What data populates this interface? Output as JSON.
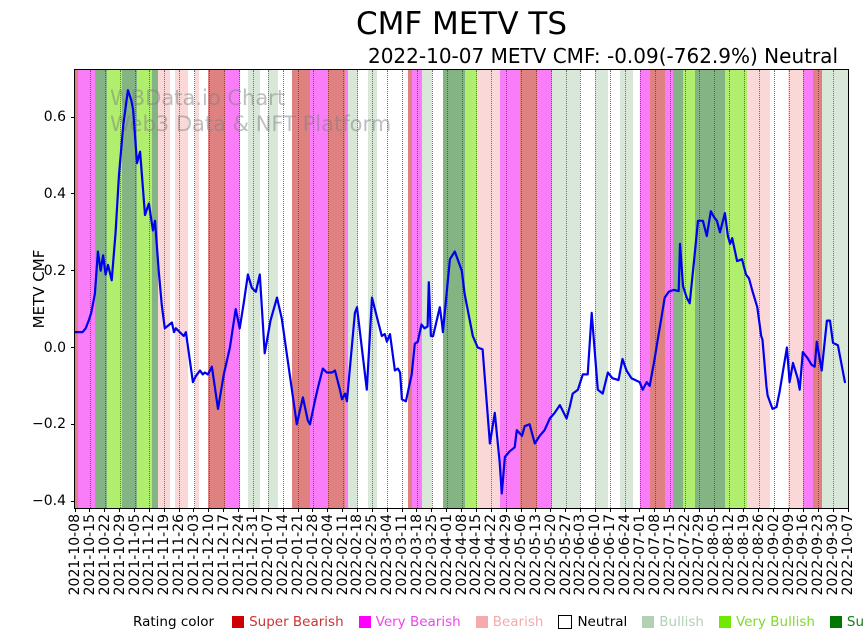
{
  "title": "CMF METV TS",
  "subtitle": "2022-10-07 METV CMF: -0.09(-762.9%) Neutral",
  "watermark": {
    "line1": "WBData.io Chart",
    "line2": "Web3 Data & NFT Platform"
  },
  "legend": {
    "title": "Rating color",
    "items": [
      {
        "label": "Super Bearish",
        "swatch": "#cc0000",
        "text_color": "#cc3333",
        "border": false
      },
      {
        "label": "Very Bearish",
        "swatch": "#ff00ff",
        "text_color": "#ee44ee",
        "border": false
      },
      {
        "label": "Bearish",
        "swatch": "#f5abab",
        "text_color": "#f5abab",
        "border": false
      },
      {
        "label": "Neutral",
        "swatch": "#ffffff",
        "text_color": "#000000",
        "border": true
      },
      {
        "label": "Bullish",
        "swatch": "#b2d1b2",
        "text_color": "#b2d1b2",
        "border": false
      },
      {
        "label": "Very Bullish",
        "swatch": "#70e800",
        "text_color": "#7fd92e",
        "border": false
      },
      {
        "label": "Super Bullish",
        "swatch": "#007700",
        "text_color": "#1a7d1a",
        "border": false
      }
    ]
  },
  "chart_data": {
    "type": "line",
    "title": "CMF METV TS",
    "xlabel": "",
    "ylabel": "METV CMF",
    "ylim": [
      -0.418,
      0.722
    ],
    "grid": "vertical-dotted-weekly",
    "legend_position": "bottom",
    "line_color": "#0000ee",
    "x_days_total": 253,
    "yticks": [
      {
        "value": 0.6,
        "label": "0.6"
      },
      {
        "value": 0.4,
        "label": "0.4"
      },
      {
        "value": 0.2,
        "label": "0.2"
      },
      {
        "value": 0.0,
        "label": "0.0"
      },
      {
        "value": -0.2,
        "label": "−0.2"
      },
      {
        "value": -0.4,
        "label": "−0.4"
      }
    ],
    "xticks": [
      "2021-10-08",
      "2021-10-15",
      "2021-10-22",
      "2021-10-29",
      "2021-11-05",
      "2021-11-12",
      "2021-11-19",
      "2021-11-26",
      "2021-12-03",
      "2021-12-10",
      "2021-12-17",
      "2021-12-24",
      "2021-12-31",
      "2022-01-07",
      "2022-01-14",
      "2022-01-21",
      "2022-01-28",
      "2022-02-04",
      "2022-02-11",
      "2022-02-18",
      "2022-02-25",
      "2022-03-04",
      "2022-03-11",
      "2022-03-18",
      "2022-03-25",
      "2022-04-01",
      "2022-04-08",
      "2022-04-15",
      "2022-04-22",
      "2022-04-29",
      "2022-05-06",
      "2022-05-13",
      "2022-05-20",
      "2022-05-27",
      "2022-06-03",
      "2022-06-10",
      "2022-06-17",
      "2022-06-24",
      "2022-07-01",
      "2022-07-08",
      "2022-07-15",
      "2022-07-22",
      "2022-07-29",
      "2022-08-05",
      "2022-08-12",
      "2022-08-19",
      "2022-08-26",
      "2022-09-02",
      "2022-09-09",
      "2022-09-16",
      "2022-09-23",
      "2022-09-30",
      "2022-10-07"
    ],
    "band_colors": {
      "super_bearish": "#e08181",
      "very_bearish": "#f97df9",
      "bearish": "#fbd8d8",
      "neutral": "#ffffff",
      "bullish": "#d9e7d9",
      "very_bullish": "#b0ee6e",
      "super_bullish": "#84b384"
    },
    "bands": [
      [
        0,
        1,
        "super_bearish"
      ],
      [
        1,
        6.5,
        "very_bearish"
      ],
      [
        6.5,
        10.5,
        "super_bullish"
      ],
      [
        10.5,
        15.4,
        "very_bullish"
      ],
      [
        15.4,
        20.3,
        "super_bullish"
      ],
      [
        20.3,
        25.2,
        "very_bullish"
      ],
      [
        25.2,
        27.2,
        "super_bullish"
      ],
      [
        27.2,
        31.1,
        "bearish"
      ],
      [
        31.1,
        32.7,
        "neutral"
      ],
      [
        32.7,
        37,
        "bearish"
      ],
      [
        37,
        39.3,
        "neutral"
      ],
      [
        39.3,
        40.6,
        "bearish"
      ],
      [
        40.6,
        43.5,
        "neutral"
      ],
      [
        43.5,
        49.1,
        "super_bearish"
      ],
      [
        49.1,
        54,
        "very_bearish"
      ],
      [
        54,
        56.6,
        "neutral"
      ],
      [
        56.6,
        60.5,
        "bullish"
      ],
      [
        60.5,
        63.2,
        "neutral"
      ],
      [
        63.2,
        66.4,
        "bullish"
      ],
      [
        66.4,
        71,
        "neutral"
      ],
      [
        71,
        76.9,
        "super_bearish"
      ],
      [
        76.9,
        82.8,
        "very_bearish"
      ],
      [
        82.8,
        88.4,
        "super_bearish"
      ],
      [
        88.4,
        89.3,
        "very_bearish"
      ],
      [
        89.3,
        92.6,
        "bullish"
      ],
      [
        92.6,
        95.9,
        "neutral"
      ],
      [
        95.9,
        98.8,
        "bullish"
      ],
      [
        98.8,
        109,
        "neutral"
      ],
      [
        109,
        110.3,
        "super_bearish"
      ],
      [
        110.3,
        113.6,
        "very_bearish"
      ],
      [
        113.6,
        116.8,
        "bullish"
      ],
      [
        116.8,
        120.4,
        "neutral"
      ],
      [
        120.4,
        127.6,
        "super_bullish"
      ],
      [
        127.6,
        131.6,
        "very_bullish"
      ],
      [
        131.6,
        139.1,
        "bearish"
      ],
      [
        139.1,
        145.6,
        "very_bearish"
      ],
      [
        145.6,
        151.2,
        "super_bearish"
      ],
      [
        151.2,
        156.1,
        "very_bearish"
      ],
      [
        156.1,
        165.3,
        "bullish"
      ],
      [
        165.3,
        170.2,
        "neutral"
      ],
      [
        170.2,
        174.4,
        "bullish"
      ],
      [
        174.4,
        178.4,
        "neutral"
      ],
      [
        178.4,
        182.6,
        "bullish"
      ],
      [
        182.6,
        184.9,
        "neutral"
      ],
      [
        184.9,
        188.2,
        "very_bearish"
      ],
      [
        188.2,
        193.1,
        "super_bearish"
      ],
      [
        193.1,
        195.7,
        "very_bearish"
      ],
      [
        195.7,
        199,
        "super_bullish"
      ],
      [
        199,
        202.9,
        "very_bullish"
      ],
      [
        202.9,
        212.7,
        "super_bullish"
      ],
      [
        212.7,
        219.9,
        "very_bullish"
      ],
      [
        219.9,
        227.4,
        "bearish"
      ],
      [
        227.4,
        233.3,
        "neutral"
      ],
      [
        233.3,
        238.2,
        "bearish"
      ],
      [
        238.2,
        241.5,
        "very_bearish"
      ],
      [
        241.5,
        244.4,
        "super_bearish"
      ],
      [
        244.4,
        253,
        "bullish"
      ]
    ],
    "series": [
      {
        "name": "METV CMF",
        "points": [
          [
            0,
            0.04
          ],
          [
            2.5,
            0.04
          ],
          [
            3.5,
            0.05
          ],
          [
            4.5,
            0.07
          ],
          [
            5.3,
            0.09
          ],
          [
            6.5,
            0.14
          ],
          [
            7.5,
            0.25
          ],
          [
            8.4,
            0.2
          ],
          [
            9.2,
            0.24
          ],
          [
            10,
            0.19
          ],
          [
            10.8,
            0.215
          ],
          [
            12,
            0.175
          ],
          [
            13.3,
            0.3
          ],
          [
            14.4,
            0.45
          ],
          [
            15.8,
            0.58
          ],
          [
            17.3,
            0.67
          ],
          [
            18.4,
            0.645
          ],
          [
            19,
            0.62
          ],
          [
            20.3,
            0.48
          ],
          [
            21.3,
            0.51
          ],
          [
            22.9,
            0.345
          ],
          [
            24.2,
            0.375
          ],
          [
            25.5,
            0.305
          ],
          [
            26.2,
            0.33
          ],
          [
            27.4,
            0.2
          ],
          [
            28.4,
            0.11
          ],
          [
            29.4,
            0.05
          ],
          [
            31.7,
            0.065
          ],
          [
            32.4,
            0.04
          ],
          [
            33,
            0.05
          ],
          [
            35.6,
            0.03
          ],
          [
            36.3,
            0.04
          ],
          [
            38.6,
            -0.09
          ],
          [
            39.5,
            -0.075
          ],
          [
            40.9,
            -0.06
          ],
          [
            41.8,
            -0.07
          ],
          [
            42.5,
            -0.065
          ],
          [
            43.5,
            -0.07
          ],
          [
            44.8,
            -0.05
          ],
          [
            46.8,
            -0.16
          ],
          [
            48.7,
            -0.07
          ],
          [
            50.7,
            0.0
          ],
          [
            52.6,
            0.1
          ],
          [
            53.9,
            0.05
          ],
          [
            55.2,
            0.115
          ],
          [
            56.6,
            0.19
          ],
          [
            57.9,
            0.155
          ],
          [
            59.2,
            0.145
          ],
          [
            60.5,
            0.19
          ],
          [
            62.1,
            -0.015
          ],
          [
            64,
            0.07
          ],
          [
            66.1,
            0.13
          ],
          [
            67.7,
            0.075
          ],
          [
            72.6,
            -0.2
          ],
          [
            74.6,
            -0.13
          ],
          [
            76.2,
            -0.19
          ],
          [
            76.9,
            -0.2
          ],
          [
            78.5,
            -0.14
          ],
          [
            79.5,
            -0.105
          ],
          [
            81.1,
            -0.055
          ],
          [
            82.4,
            -0.065
          ],
          [
            84.1,
            -0.065
          ],
          [
            85.1,
            -0.06
          ],
          [
            86.7,
            -0.11
          ],
          [
            87.4,
            -0.135
          ],
          [
            88.4,
            -0.12
          ],
          [
            89,
            -0.14
          ],
          [
            91.6,
            0.09
          ],
          [
            92.3,
            0.105
          ],
          [
            95.5,
            -0.11
          ],
          [
            97.2,
            0.13
          ],
          [
            99.1,
            0.07
          ],
          [
            100.4,
            0.03
          ],
          [
            101.4,
            0.035
          ],
          [
            102.1,
            0.015
          ],
          [
            103.1,
            0.035
          ],
          [
            104.7,
            -0.06
          ],
          [
            105.7,
            -0.055
          ],
          [
            106.4,
            -0.065
          ],
          [
            107,
            -0.135
          ],
          [
            108.3,
            -0.14
          ],
          [
            110.2,
            -0.07
          ],
          [
            111.2,
            0.01
          ],
          [
            112.2,
            0.015
          ],
          [
            113.4,
            0.06
          ],
          [
            114.4,
            0.05
          ],
          [
            115.4,
            0.055
          ],
          [
            115.8,
            0.17
          ],
          [
            116.5,
            0.03
          ],
          [
            117.2,
            0.03
          ],
          [
            119.4,
            0.105
          ],
          [
            120.1,
            0.065
          ],
          [
            120.4,
            0.04
          ],
          [
            122.7,
            0.23
          ],
          [
            124.3,
            0.25
          ],
          [
            126.6,
            0.2
          ],
          [
            127.5,
            0.14
          ],
          [
            130.2,
            0.03
          ],
          [
            131.8,
            0.0
          ],
          [
            133.4,
            -0.005
          ],
          [
            135.8,
            -0.25
          ],
          [
            137.4,
            -0.17
          ],
          [
            139,
            -0.3
          ],
          [
            139.7,
            -0.38
          ],
          [
            140.7,
            -0.285
          ],
          [
            142.3,
            -0.27
          ],
          [
            143.9,
            -0.26
          ],
          [
            144.6,
            -0.215
          ],
          [
            146.3,
            -0.23
          ],
          [
            147.2,
            -0.205
          ],
          [
            148.8,
            -0.2
          ],
          [
            150.5,
            -0.25
          ],
          [
            152.1,
            -0.23
          ],
          [
            153.7,
            -0.215
          ],
          [
            155.4,
            -0.185
          ],
          [
            157,
            -0.17
          ],
          [
            158.7,
            -0.15
          ],
          [
            160.9,
            -0.185
          ],
          [
            161.9,
            -0.155
          ],
          [
            162.9,
            -0.12
          ],
          [
            164.6,
            -0.11
          ],
          [
            166.2,
            -0.07
          ],
          [
            167.8,
            -0.07
          ],
          [
            169.1,
            0.09
          ],
          [
            171.1,
            -0.11
          ],
          [
            172.7,
            -0.12
          ],
          [
            174.4,
            -0.065
          ],
          [
            175.9,
            -0.08
          ],
          [
            177.9,
            -0.085
          ],
          [
            179.2,
            -0.03
          ],
          [
            180.5,
            -0.06
          ],
          [
            182.1,
            -0.08
          ],
          [
            184.8,
            -0.09
          ],
          [
            185.8,
            -0.11
          ],
          [
            187.1,
            -0.09
          ],
          [
            188.1,
            -0.1
          ],
          [
            189.7,
            -0.03
          ],
          [
            190.7,
            0.02
          ],
          [
            192,
            0.08
          ],
          [
            193,
            0.13
          ],
          [
            194.3,
            0.145
          ],
          [
            196,
            0.15
          ],
          [
            197.6,
            0.147
          ],
          [
            198,
            0.27
          ],
          [
            199,
            0.16
          ],
          [
            200.2,
            0.13
          ],
          [
            201.2,
            0.115
          ],
          [
            202.8,
            0.24
          ],
          [
            203.9,
            0.33
          ],
          [
            205.5,
            0.33
          ],
          [
            206.8,
            0.29
          ],
          [
            208.1,
            0.355
          ],
          [
            209.1,
            0.34
          ],
          [
            210.1,
            0.33
          ],
          [
            211.1,
            0.3
          ],
          [
            212.7,
            0.35
          ],
          [
            213.7,
            0.29
          ],
          [
            214.4,
            0.27
          ],
          [
            215.1,
            0.285
          ],
          [
            216.7,
            0.225
          ],
          [
            218.3,
            0.23
          ],
          [
            219.6,
            0.19
          ],
          [
            220.6,
            0.18
          ],
          [
            221.6,
            0.15
          ],
          [
            223.3,
            0.105
          ],
          [
            224.6,
            0.03
          ],
          [
            225,
            0.02
          ],
          [
            226.3,
            -0.1
          ],
          [
            226.7,
            -0.125
          ],
          [
            228.3,
            -0.16
          ],
          [
            229.6,
            -0.155
          ],
          [
            230.6,
            -0.115
          ],
          [
            233,
            0.0
          ],
          [
            233.9,
            -0.09
          ],
          [
            235,
            -0.04
          ],
          [
            236.5,
            -0.08
          ],
          [
            237.2,
            -0.11
          ],
          [
            238.2,
            -0.012
          ],
          [
            239.8,
            -0.028
          ],
          [
            241.1,
            -0.045
          ],
          [
            242.1,
            -0.05
          ],
          [
            242.8,
            0.015
          ],
          [
            244.4,
            -0.06
          ],
          [
            246.1,
            0.07
          ],
          [
            247.1,
            0.07
          ],
          [
            248.1,
            0.012
          ],
          [
            249.7,
            0.006
          ],
          [
            252,
            -0.09
          ]
        ]
      }
    ]
  }
}
